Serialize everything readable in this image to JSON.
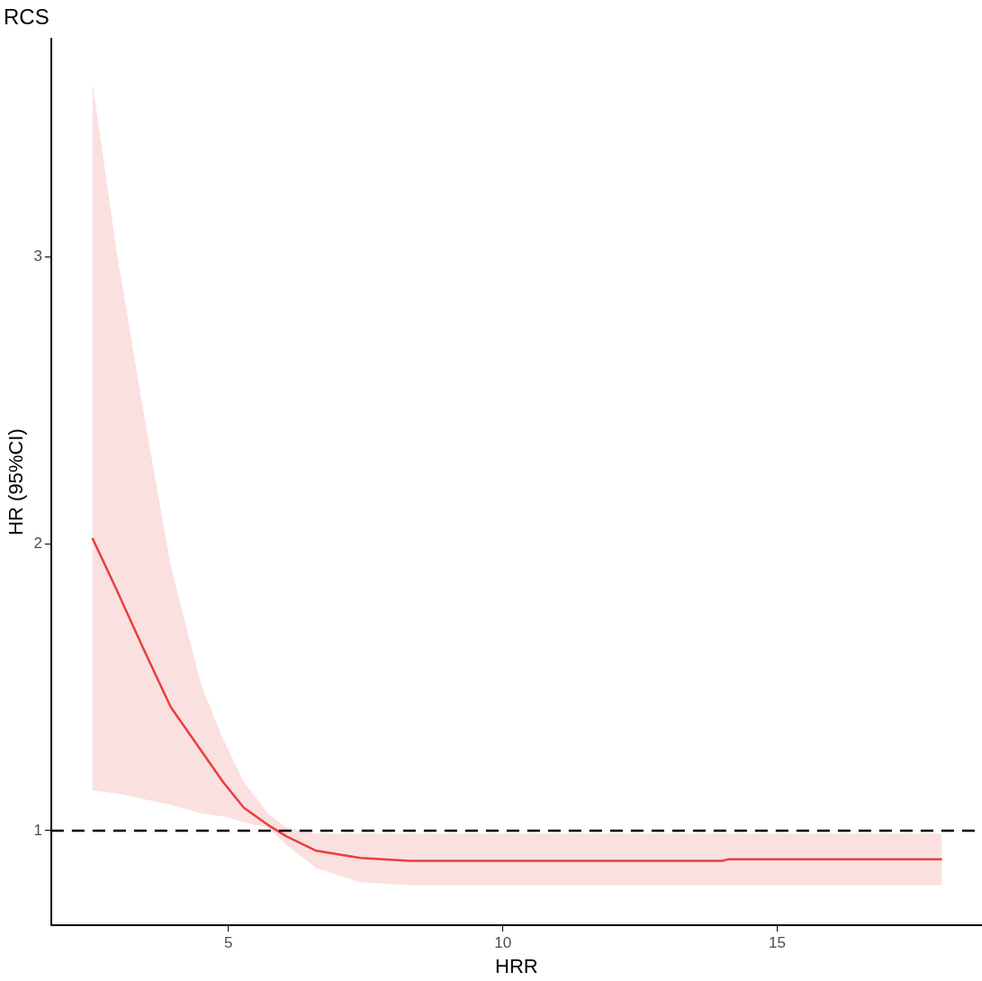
{
  "chart_data": {
    "type": "line",
    "title": "RCS",
    "xlabel": "HRR",
    "ylabel": "HR (95%CI)",
    "xlim": [
      1.77,
      18.73
    ],
    "xticks": [
      5,
      10,
      15
    ],
    "ylim": [
      0.67,
      3.76
    ],
    "yticks": [
      1,
      2,
      3
    ],
    "grid": false,
    "legend": false,
    "series": [
      {
        "color": "#e8403f",
        "x": [
          2.52,
          2.96,
          3.46,
          3.95,
          4.5,
          4.9,
          5.28,
          5.72,
          6.06,
          6.6,
          7.4,
          8.3,
          10,
          12,
          14,
          14.1,
          16,
          18
        ],
        "values": [
          2.02,
          1.84,
          1.63,
          1.43,
          1.28,
          1.17,
          1.08,
          1.02,
          0.98,
          0.93,
          0.905,
          0.895,
          0.895,
          0.895,
          0.895,
          0.9,
          0.9,
          0.9
        ],
        "upper": [
          3.61,
          3.02,
          2.45,
          1.92,
          1.51,
          1.32,
          1.17,
          1.06,
          1.01,
          0.99,
          0.99,
          0.99,
          0.99,
          0.99,
          0.99,
          0.99,
          0.99,
          0.99
        ],
        "lower": [
          1.14,
          1.13,
          1.11,
          1.09,
          1.06,
          1.05,
          1.03,
          1.01,
          0.95,
          0.87,
          0.82,
          0.81,
          0.81,
          0.81,
          0.81,
          0.81,
          0.81,
          0.81
        ]
      }
    ],
    "ref_lines": [
      {
        "axis": "y",
        "value": 1,
        "color": "#000000",
        "line_style": "dashed"
      }
    ]
  }
}
